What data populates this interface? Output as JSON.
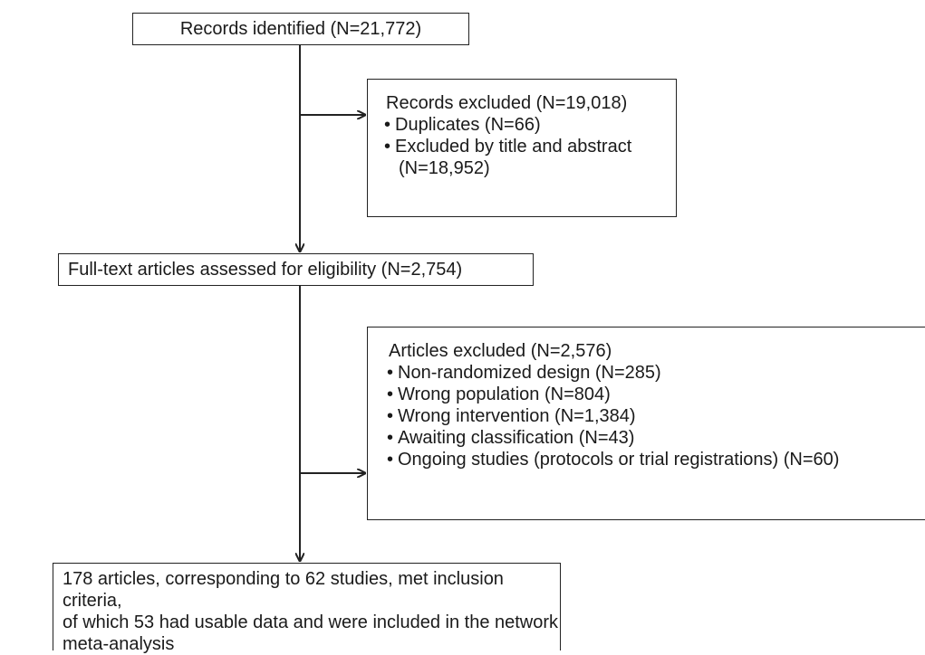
{
  "flow": {
    "identified": "Records identified (N=21,772)",
    "excluded_records": {
      "heading": "Records excluded (N=19,018)",
      "items": [
        "Duplicates (N=66)",
        "Excluded by title and abstract"
      ],
      "item_continuation": "(N=18,952)"
    },
    "fulltext": "Full-text articles assessed for eligibility (N=2,754)",
    "excluded_articles": {
      "heading": "Articles excluded (N=2,576)",
      "items": [
        "Non-randomized design (N=285)",
        "Wrong population (N=804)",
        "Wrong intervention (N=1,384)",
        "Awaiting classification (N=43)",
        "Ongoing studies (protocols or trial registrations) (N=60)"
      ]
    },
    "included": [
      "178 articles, corresponding to 62 studies, met inclusion criteria,",
      "of which 53 had usable data and were included in the network",
      "meta-analysis"
    ]
  }
}
